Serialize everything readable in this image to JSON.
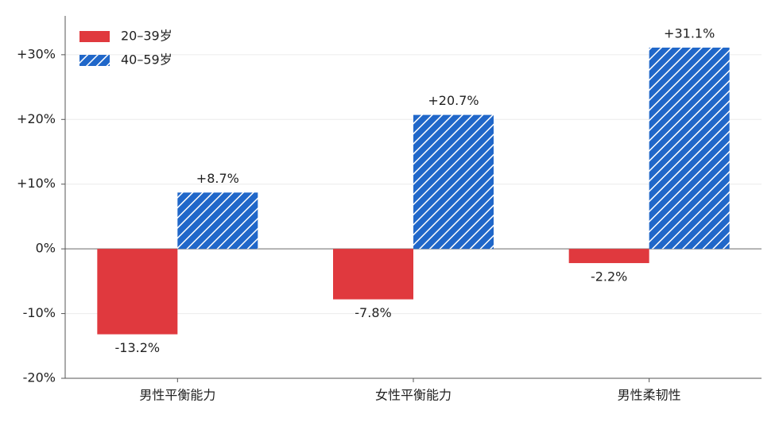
{
  "chart_data": {
    "type": "bar",
    "categories": [
      "男性平衡能力",
      "女性平衡能力",
      "男性柔韧性"
    ],
    "series": [
      {
        "name": "20–39岁",
        "color": "#e0393e",
        "values": [
          -13.2,
          -7.8,
          -2.2
        ],
        "value_labels": [
          "-13.2%",
          "-7.8%",
          "-2.2%"
        ]
      },
      {
        "name": "40–59岁",
        "color": "#2067c9",
        "hatch": "//",
        "values": [
          8.7,
          20.7,
          31.1
        ],
        "value_labels": [
          "+8.7%",
          "+20.7%",
          "+31.1%"
        ]
      }
    ],
    "ylim": [
      -20,
      36
    ],
    "yticks": [
      {
        "value": -20,
        "label": "-20%"
      },
      {
        "value": -10,
        "label": "-10%"
      },
      {
        "value": 0,
        "label": "0%"
      },
      {
        "value": 10,
        "label": "+10%"
      },
      {
        "value": 20,
        "label": "+20%"
      },
      {
        "value": 30,
        "label": "+30%"
      }
    ],
    "grid": true,
    "legend": "upper left"
  }
}
